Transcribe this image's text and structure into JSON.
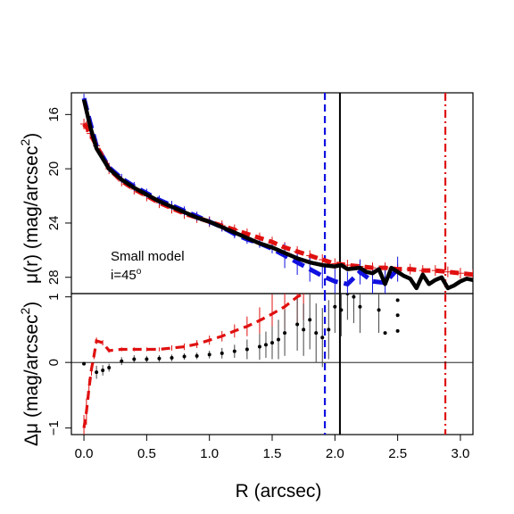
{
  "chart_data": [
    {
      "type": "line",
      "panel": "top",
      "ylabel": "μ(r) (mag/arcsec²)",
      "ylabel_parts": {
        "main": "μ(r) (mag/arcsec",
        "sup": "2",
        "end": ")"
      },
      "ylim": [
        29.2,
        14.4
      ],
      "y_reversed": true,
      "yticks": [
        16,
        20,
        24,
        28
      ],
      "ytick_labels": [
        "16",
        "20",
        "24",
        "28"
      ],
      "xlim": [
        -0.1,
        3.1
      ],
      "annotations": [
        {
          "text": "Small model",
          "parts": {
            "main": "Small model",
            "sup": ""
          }
        },
        {
          "text": "i=45°",
          "parts": {
            "main": "i=45",
            "sup": "o"
          }
        }
      ],
      "vlines": [
        {
          "x": 1.92,
          "color": "#1010e0",
          "style": "dashed"
        },
        {
          "x": 2.04,
          "color": "#000000",
          "style": "solid"
        },
        {
          "x": 2.88,
          "color": "#e01010",
          "style": "dashdot"
        }
      ],
      "series": [
        {
          "style": "red-dash-points",
          "color": "#e01010",
          "x": [
            0.0,
            0.02,
            0.05,
            0.1,
            0.2,
            0.3,
            0.4,
            0.5,
            0.6,
            0.7,
            0.8,
            0.9,
            1.0,
            1.1,
            1.2,
            1.3,
            1.4,
            1.5,
            1.6,
            1.7,
            1.8,
            1.9,
            2.0,
            2.1,
            2.2,
            2.3,
            2.4,
            2.5,
            2.6,
            2.7,
            2.8,
            2.9,
            3.0,
            3.1
          ],
          "y": [
            16.7,
            16.9,
            17.4,
            18.3,
            20.0,
            20.9,
            21.5,
            22.0,
            22.5,
            22.9,
            23.3,
            23.6,
            23.9,
            24.2,
            24.5,
            24.8,
            25.1,
            25.4,
            25.8,
            26.1,
            26.4,
            26.7,
            27.0,
            27.1,
            27.2,
            27.3,
            27.3,
            27.4,
            27.4,
            27.5,
            27.5,
            27.6,
            27.7,
            27.8
          ]
        },
        {
          "style": "blue-dash-errorbars",
          "color": "#1010e0",
          "x": [
            0.0,
            0.05,
            0.1,
            0.2,
            0.3,
            0.4,
            0.5,
            0.6,
            0.7,
            0.8,
            0.9,
            1.0,
            1.1,
            1.2,
            1.3,
            1.4,
            1.5,
            1.6,
            1.7,
            1.8,
            1.9,
            2.0,
            2.1,
            2.2,
            2.3,
            2.4,
            2.5
          ],
          "y": [
            14.8,
            16.6,
            18.3,
            19.9,
            20.7,
            21.3,
            21.8,
            22.3,
            22.7,
            23.1,
            23.5,
            23.9,
            24.3,
            24.8,
            25.2,
            25.5,
            25.9,
            26.4,
            26.9,
            27.4,
            27.9,
            28.3,
            28.5,
            27.6,
            28.3,
            28.4,
            27.4
          ]
        },
        {
          "style": "black-solid",
          "color": "#000000",
          "x": [
            0.0,
            0.05,
            0.1,
            0.2,
            0.3,
            0.4,
            0.5,
            0.6,
            0.7,
            0.8,
            0.9,
            1.0,
            1.1,
            1.2,
            1.3,
            1.4,
            1.5,
            1.6,
            1.7,
            1.8,
            1.9,
            2.0,
            2.05,
            2.1,
            2.2,
            2.25,
            2.3,
            2.35,
            2.4,
            2.45,
            2.5,
            2.55,
            2.6,
            2.65,
            2.7,
            2.75,
            2.8,
            2.85,
            2.9,
            2.95,
            3.0,
            3.05,
            3.1
          ],
          "y": [
            14.9,
            16.9,
            18.5,
            20.0,
            20.8,
            21.4,
            21.9,
            22.4,
            22.8,
            23.2,
            23.6,
            23.9,
            24.3,
            24.7,
            25.1,
            25.5,
            25.8,
            26.2,
            26.6,
            26.9,
            27.1,
            27.2,
            27.1,
            27.4,
            27.3,
            27.6,
            27.7,
            27.4,
            28.5,
            27.3,
            27.6,
            27.9,
            28.1,
            28.8,
            27.8,
            28.5,
            28.2,
            28.0,
            28.8,
            28.6,
            28.3,
            28.1,
            28.2
          ]
        }
      ]
    },
    {
      "type": "line",
      "panel": "bottom",
      "xlabel": "R (arcsec)",
      "ylabel": "Δμ (mag/arcsec²)",
      "ylabel_parts": {
        "main": "Δμ (mag/arcsec",
        "sup": "2",
        "end": ")"
      },
      "xlim": [
        -0.1,
        3.1
      ],
      "ylim": [
        -1.1,
        1.05
      ],
      "xticks": [
        0.0,
        0.5,
        1.0,
        1.5,
        2.0,
        2.5,
        3.0
      ],
      "xtick_labels": [
        "0.0",
        "0.5",
        "1.0",
        "1.5",
        "2.0",
        "2.5",
        "3.0"
      ],
      "yticks": [
        -1,
        0,
        1
      ],
      "ytick_labels": [
        "−1",
        "0",
        "1"
      ],
      "hline": 0,
      "series": [
        {
          "style": "red-dash-errorbars",
          "color": "#e01010",
          "x": [
            0.0,
            0.02,
            0.04,
            0.06,
            0.08,
            0.1,
            0.15,
            0.2,
            0.3,
            0.4,
            0.5,
            0.6,
            0.7,
            0.8,
            0.9,
            1.0,
            1.1,
            1.2,
            1.3,
            1.4,
            1.5,
            1.6,
            1.7,
            1.75
          ],
          "y": [
            -1.0,
            -0.75,
            -0.4,
            -0.1,
            0.1,
            0.33,
            0.3,
            0.18,
            0.2,
            0.2,
            0.2,
            0.2,
            0.22,
            0.24,
            0.28,
            0.34,
            0.4,
            0.48,
            0.55,
            0.64,
            0.74,
            0.85,
            1.0,
            1.05
          ],
          "err": [
            0.2,
            0.2,
            0.15,
            0.1,
            0.05,
            0.05,
            0.04,
            0.03,
            0.03,
            0.03,
            0.03,
            0.03,
            0.04,
            0.05,
            0.06,
            0.07,
            0.08,
            0.1,
            0.15,
            0.2,
            0.3,
            0.35,
            0.4,
            0.4
          ]
        },
        {
          "style": "black-points-errorbars",
          "color": "#000000",
          "x": [
            0.0,
            0.1,
            0.15,
            0.2,
            0.3,
            0.4,
            0.5,
            0.6,
            0.7,
            0.8,
            0.9,
            1.0,
            1.1,
            1.2,
            1.3,
            1.4,
            1.45,
            1.5,
            1.55,
            1.6,
            1.7,
            1.75,
            1.8,
            1.85,
            1.9,
            1.95,
            2.0,
            2.05,
            2.1,
            2.15,
            2.2,
            2.35,
            2.4,
            2.5,
            2.5,
            2.5
          ],
          "y": [
            -0.02,
            -0.15,
            -0.12,
            -0.08,
            0.02,
            0.05,
            0.05,
            0.06,
            0.07,
            0.09,
            0.1,
            0.12,
            0.14,
            0.17,
            0.2,
            0.24,
            0.27,
            0.3,
            0.35,
            0.45,
            0.58,
            0.5,
            0.65,
            0.45,
            0.38,
            0.5,
            0.85,
            0.8,
            1.05,
            1.0,
            0.85,
            0.8,
            0.45,
            0.95,
            0.72,
            0.48
          ],
          "err": [
            0.02,
            0.1,
            0.08,
            0.06,
            0.06,
            0.06,
            0.05,
            0.05,
            0.05,
            0.05,
            0.05,
            0.06,
            0.08,
            0.1,
            0.15,
            0.2,
            0.2,
            0.25,
            0.3,
            0.35,
            0.4,
            0.4,
            0.45,
            0.45,
            0.45,
            0.45,
            0.4,
            0.4,
            0.4,
            0.4,
            0.4,
            0.35,
            0.0,
            0.0,
            0.0,
            0.0
          ]
        }
      ]
    }
  ]
}
